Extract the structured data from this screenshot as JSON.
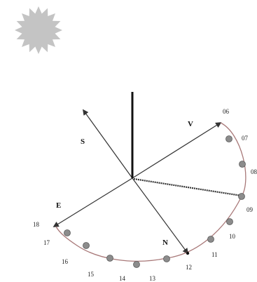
{
  "diagram": {
    "sun_icon": "sun-icon",
    "directions": {
      "south": "S",
      "west": "V",
      "east": "E",
      "north": "N"
    },
    "hours": [
      "06",
      "07",
      "08",
      "09",
      "10",
      "11",
      "12",
      "13",
      "14",
      "15",
      "16",
      "17",
      "18"
    ],
    "colors": {
      "sun": "#c4c4c4",
      "axes": "#333333",
      "pole": "#111111",
      "path": "#a87878",
      "markers": "#8c8c8c",
      "marker_stroke": "#5a5a5a",
      "noon_marker": "#111111"
    }
  }
}
